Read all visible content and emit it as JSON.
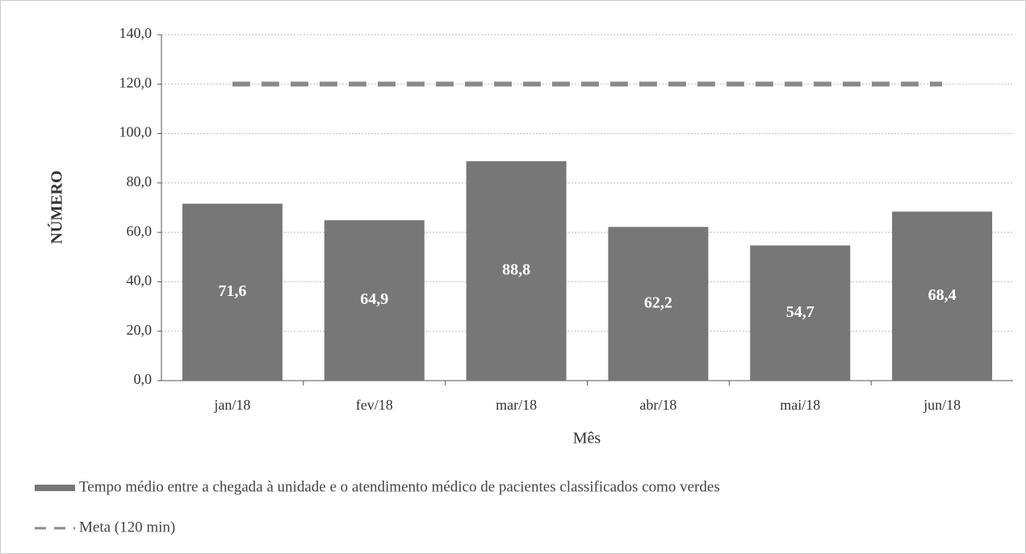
{
  "chart_data": {
    "type": "bar",
    "categories": [
      "jan/18",
      "fev/18",
      "mar/18",
      "abr/18",
      "mai/18",
      "jun/18"
    ],
    "series": [
      {
        "name": "Tempo médio entre a chegada à unidade e o atendimento médico de pacientes classificados como verdes",
        "type": "bar",
        "color": "#777777",
        "values": [
          71.6,
          64.9,
          88.8,
          62.2,
          54.7,
          68.4
        ],
        "value_labels": [
          "71,6",
          "64,9",
          "88,8",
          "62,2",
          "54,7",
          "68,4"
        ]
      },
      {
        "name": "Meta (120 min)",
        "type": "line",
        "color": "#8a8a8a",
        "dashed": true,
        "values": [
          120,
          120,
          120,
          120,
          120,
          120
        ]
      }
    ],
    "ylabel": "NÚMERO",
    "xlabel": "Mês",
    "ylim": [
      0,
      140
    ],
    "yticks": [
      {
        "value": 0,
        "label": "0,0"
      },
      {
        "value": 20,
        "label": "20,0"
      },
      {
        "value": 40,
        "label": "40,0"
      },
      {
        "value": 60,
        "label": "60,0"
      },
      {
        "value": 80,
        "label": "80,0"
      },
      {
        "value": 100,
        "label": "100,0"
      },
      {
        "value": 120,
        "label": "120,0"
      },
      {
        "value": 140,
        "label": "140,0"
      }
    ],
    "grid": true
  }
}
